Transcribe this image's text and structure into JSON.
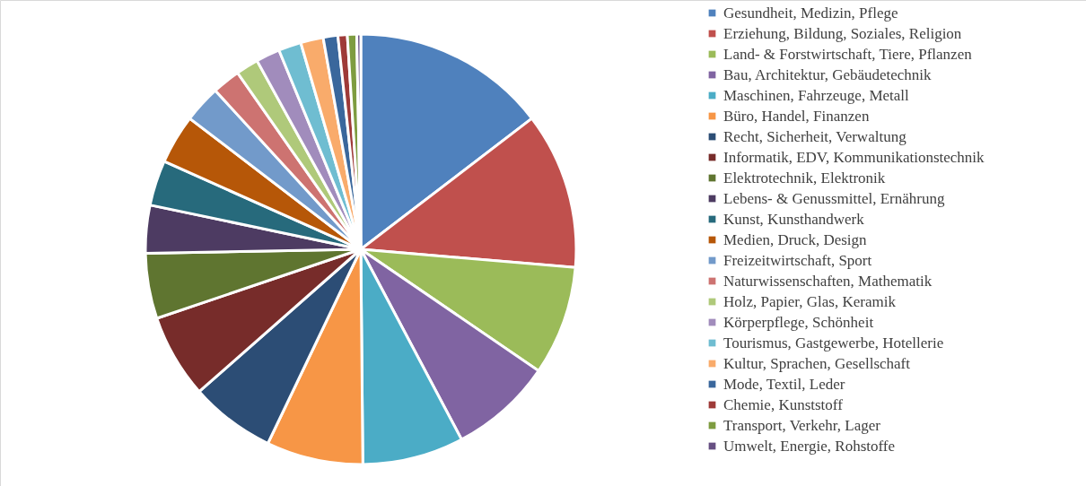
{
  "chart_data": {
    "type": "pie",
    "legend": "right",
    "categories": [
      "Gesundheit, Medizin, Pflege",
      "Erziehung, Bildung, Soziales, Religion",
      "Land- & Forstwirtschaft, Tiere, Pflanzen",
      "Bau, Architektur, Gebäudetechnik",
      "Maschinen, Fahrzeuge, Metall",
      "Büro, Handel, Finanzen",
      "Recht, Sicherheit, Verwaltung",
      "Informatik, EDV, Kommunikationstechnik",
      "Elektrotechnik, Elektronik",
      "Lebens- & Genussmittel, Ernährung",
      "Kunst, Kunsthandwerk",
      "Medien, Druck, Design",
      "Freizeitwirtschaft, Sport",
      "Naturwissenschaften, Mathematik",
      "Holz, Papier, Glas, Keramik",
      "Körperpflege, Schönheit",
      "Tourismus, Gastgewerbe, Hotellerie",
      "Kultur, Sprachen, Gesellschaft",
      "Mode, Textil, Leder",
      "Chemie, Kunststoff",
      "Transport, Verkehr, Lager",
      "Umwelt, Energie, Rohstoffe"
    ],
    "values": [
      14.6,
      11.75,
      8.2,
      7.7,
      7.6,
      7.25,
      6.4,
      6.3,
      4.9,
      3.6,
      3.4,
      3.7,
      2.8,
      2.1,
      1.7,
      1.8,
      1.7,
      1.7,
      1.1,
      0.7,
      0.7,
      0.3
    ],
    "colors": [
      "#4f81bd",
      "#c0504d",
      "#9bbb59",
      "#8064a2",
      "#4bacc6",
      "#f79646",
      "#2c4d75",
      "#772c2a",
      "#5f7530",
      "#4d3b62",
      "#276a7c",
      "#b65708",
      "#729aca",
      "#cd7371",
      "#afc97a",
      "#a18cbc",
      "#6fbdd1",
      "#f9ab6b",
      "#3a679c",
      "#9e3a38",
      "#7e9c40",
      "#664f82"
    ]
  }
}
